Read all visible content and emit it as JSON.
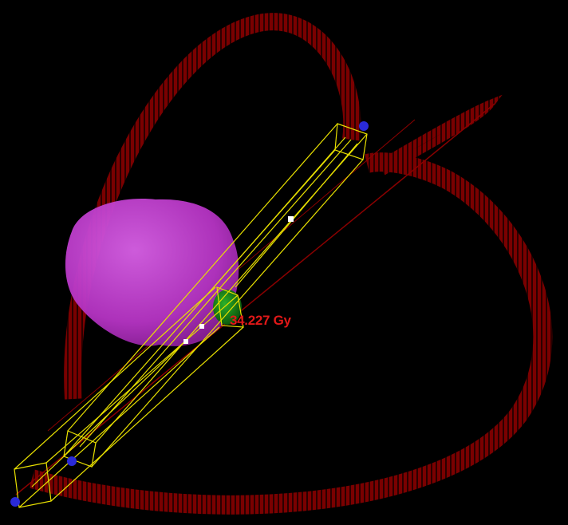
{
  "dose": {
    "value": "34.227 Gy"
  },
  "colors": {
    "background": "#000000",
    "arc": "#8a0000",
    "arc_dark": "#4a0000",
    "beam": "#e8e000",
    "organ": "#c440d0",
    "target": "#1e8a1e",
    "dose_text": "#e01818",
    "handle": "#2a2ad8",
    "isocenter": "#ffffff"
  },
  "icons": {
    "handle": "blue-sphere-handle-icon",
    "isocenter": "isocenter-marker-icon"
  }
}
